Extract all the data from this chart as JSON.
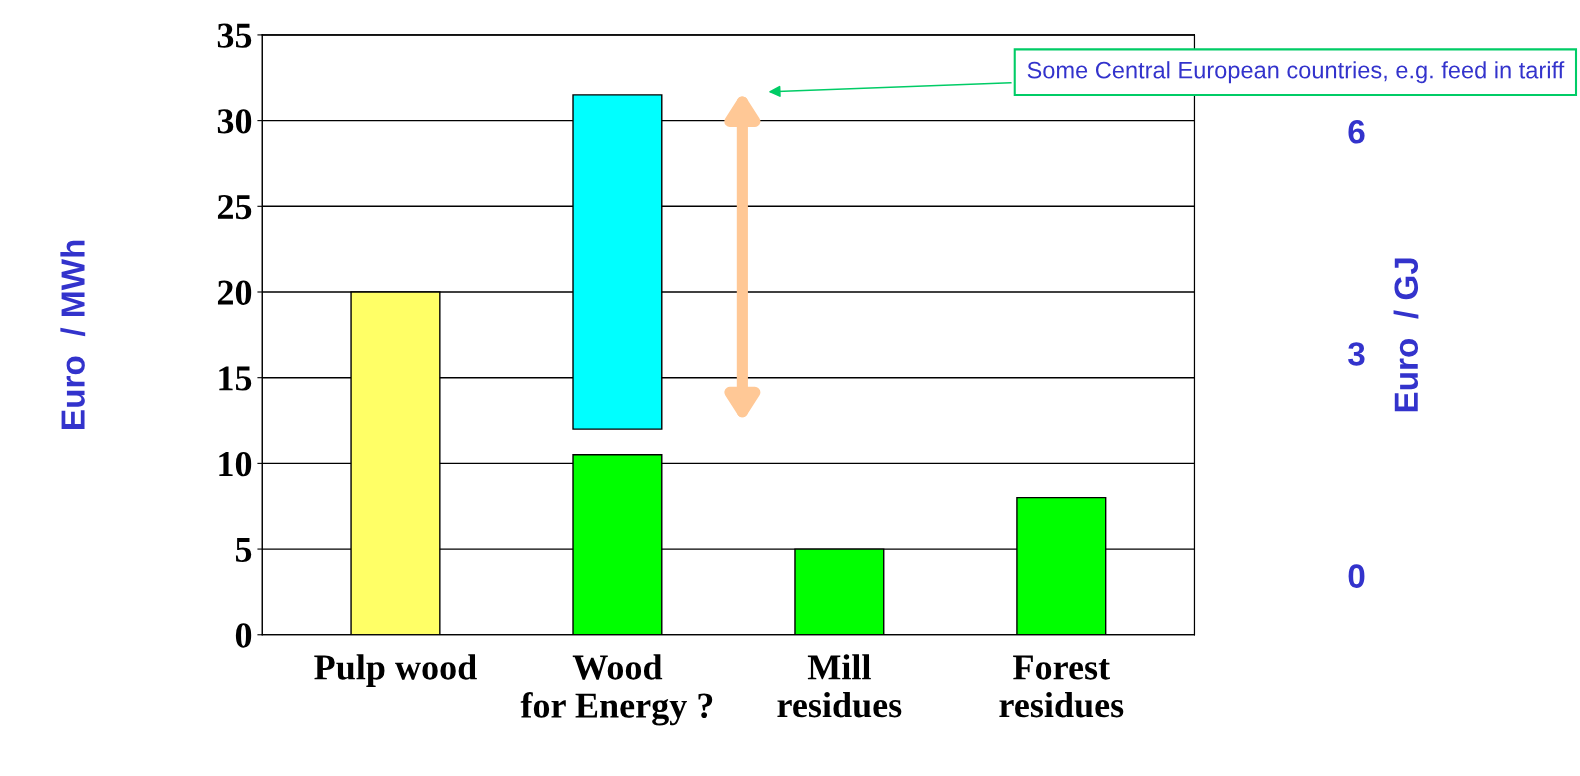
{
  "chart_data": {
    "type": "bar",
    "ylabel": "Euro  / MWh",
    "y2label": "Euro  / GJ",
    "categories": [
      "Pulp wood",
      "Wood for Energy ?",
      "Mill residues",
      "Forest residues"
    ],
    "series": [
      {
        "colors": [
          "#ffff66",
          "#00ff00",
          "#00ff00",
          "#00ff00"
        ],
        "values": [
          20,
          10.5,
          5,
          8
        ]
      },
      {
        "color": "#00ffff",
        "values": [
          null,
          19.5,
          null,
          null
        ],
        "base": [
          null,
          12,
          null,
          null
        ]
      }
    ],
    "ylim": [
      0,
      35
    ],
    "yticks": [
      0,
      5,
      10,
      15,
      20,
      25,
      30,
      35
    ],
    "y2lim": [
      -0.8,
      7.3
    ],
    "y2ticks": [
      0,
      3,
      6
    ],
    "annotations": [
      "Some Central European countries, e.g. feed in tariff"
    ],
    "grid": "y",
    "legend": false
  }
}
